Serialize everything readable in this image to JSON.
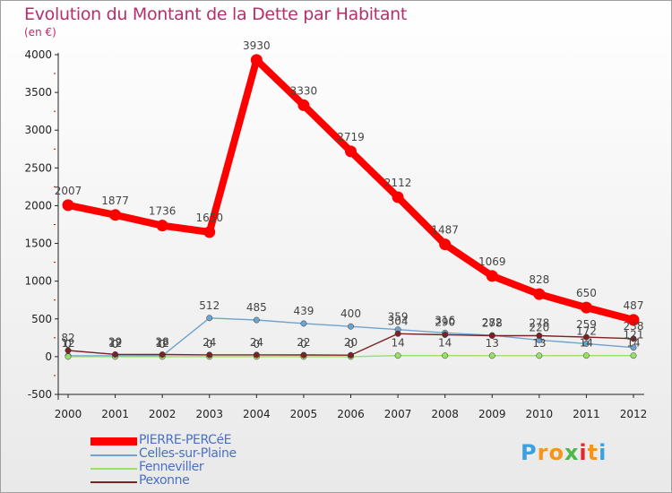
{
  "chart_data": {
    "type": "line",
    "title": "Evolution du Montant de la Dette par Habitant",
    "subtitle": "(en €)",
    "xlabel": "",
    "ylabel": "",
    "x": [
      "2000",
      "2001",
      "2002",
      "2003",
      "2004",
      "2005",
      "2006",
      "2007",
      "2008",
      "2009",
      "2010",
      "2011",
      "2012"
    ],
    "ylim": [
      -500,
      4000
    ],
    "yticks": [
      -500,
      0,
      500,
      1000,
      1500,
      2000,
      2500,
      3000,
      3500,
      4000
    ],
    "grid": false,
    "legend_position": "bottom-left",
    "series": [
      {
        "name": "PIERRE-PERCéE",
        "color": "#ff0000",
        "values": [
          2007,
          1877,
          1736,
          1650,
          3930,
          3330,
          2719,
          2112,
          1487,
          1069,
          828,
          650,
          487
        ]
      },
      {
        "name": "Celles-sur-Plaine",
        "color": "#6ea3d0",
        "values": [
          12,
          12,
          12,
          512,
          485,
          439,
          400,
          359,
          316,
          282,
          220,
          172,
          121
        ]
      },
      {
        "name": "Fenneviller",
        "color": "#99e066",
        "values": [
          0,
          0,
          0,
          0,
          0,
          0,
          0,
          14,
          14,
          13,
          13,
          14,
          14
        ]
      },
      {
        "name": "Pexonne",
        "color": "#7b2222",
        "values": [
          82,
          29,
          28,
          24,
          24,
          22,
          20,
          304,
          290,
          278,
          278,
          259,
          238
        ]
      }
    ]
  },
  "logo": {
    "letters": [
      "P",
      "r",
      "o",
      "x",
      "i",
      "t",
      "i"
    ],
    "colors": [
      "#3aa0e0",
      "#f7941d",
      "#f7941d",
      "#4cb848",
      "#e8262b",
      "#f7941d",
      "#3aa0e0"
    ]
  }
}
